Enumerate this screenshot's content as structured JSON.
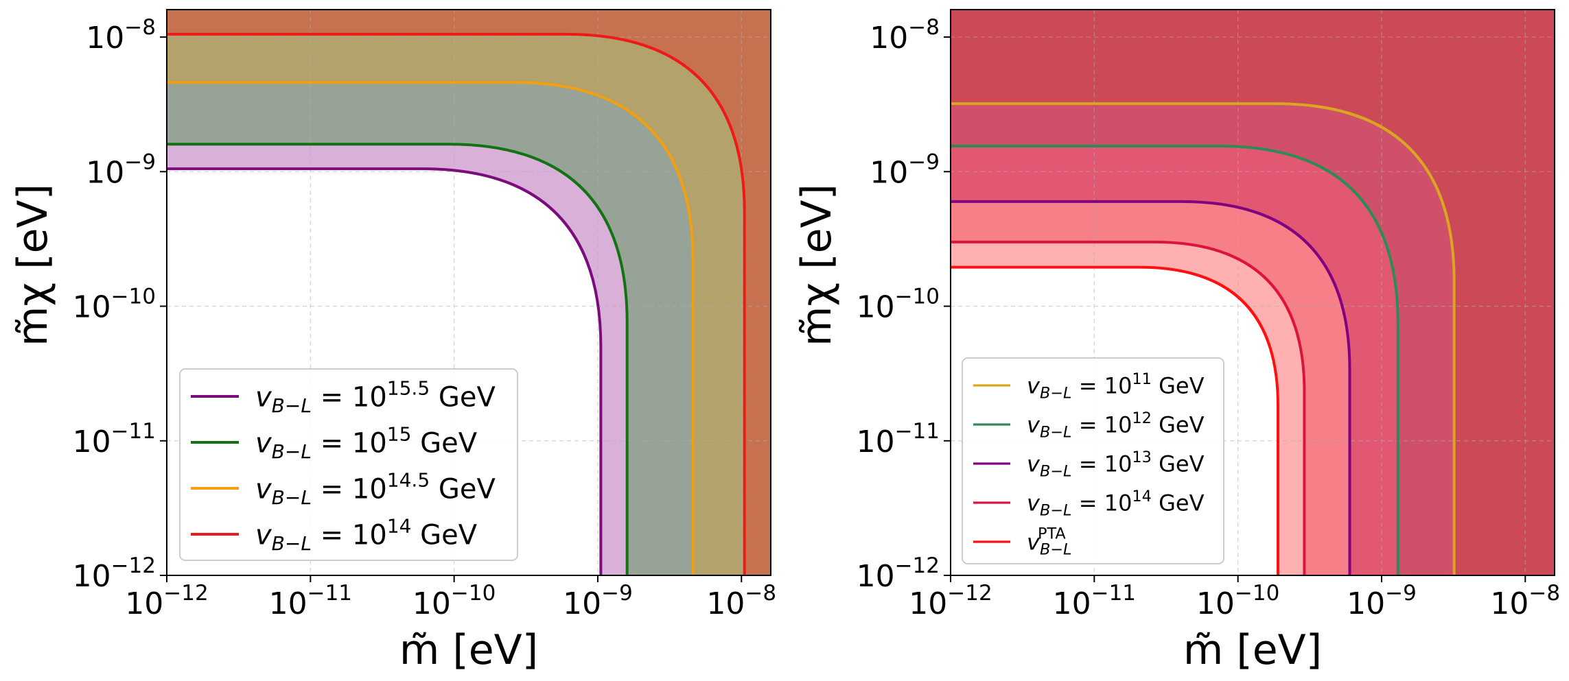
{
  "chart_data": [
    {
      "type": "area",
      "panel": "left",
      "xlabel": "m̃ [eV]",
      "ylabel": "m̃χ [eV]",
      "x_scale": "log",
      "y_scale": "log",
      "xlim": [
        1e-12,
        1.6e-08
      ],
      "ylim": [
        1e-12,
        1.6e-08
      ],
      "xtick_labels": [
        {
          "value": 1e-12,
          "base": "10",
          "exp": "−12"
        },
        {
          "value": 1e-11,
          "base": "10",
          "exp": "−11"
        },
        {
          "value": 1e-10,
          "base": "10",
          "exp": "−10"
        },
        {
          "value": 1e-09,
          "base": "10",
          "exp": "−9"
        },
        {
          "value": 1e-08,
          "base": "10",
          "exp": "−8"
        }
      ],
      "ytick_labels": [
        {
          "value": 1e-12,
          "base": "10",
          "exp": "−12"
        },
        {
          "value": 1e-11,
          "base": "10",
          "exp": "−11"
        },
        {
          "value": 1e-10,
          "base": "10",
          "exp": "−10"
        },
        {
          "value": 1e-09,
          "base": "10",
          "exp": "−9"
        },
        {
          "value": 1e-08,
          "base": "10",
          "exp": "−8"
        }
      ],
      "grid": true,
      "legend_position": "lower-left",
      "series": [
        {
          "label_main": "v",
          "label_sub": "B−L",
          "label_eq": " = 10",
          "label_exp": "15.5",
          "label_unit": " GeV",
          "threshold_x": 1.05e-09,
          "threshold_y": 1.05e-09,
          "line_color": "#7b0c7b",
          "fill_color": "#d8b0d8"
        },
        {
          "label_main": "v",
          "label_sub": "B−L",
          "label_eq": " = 10",
          "label_exp": "15",
          "label_unit": " GeV",
          "threshold_x": 1.6e-09,
          "threshold_y": 1.6e-09,
          "line_color": "#137313",
          "fill_color": "#96a396"
        },
        {
          "label_main": "v",
          "label_sub": "B−L",
          "label_eq": " = 10",
          "label_exp": "14.5",
          "label_unit": " GeV",
          "threshold_x": 4.6e-09,
          "threshold_y": 4.6e-09,
          "line_color": "#f0a010",
          "fill_color": "#b3a26b"
        },
        {
          "label_main": "v",
          "label_sub": "B−L",
          "label_eq": " = 10",
          "label_exp": "14",
          "label_unit": " GeV",
          "threshold_x": 1.05e-08,
          "threshold_y": 1.05e-08,
          "line_color": "#ee1a1a",
          "fill_color": "#c67250"
        }
      ]
    },
    {
      "type": "area",
      "panel": "right",
      "xlabel": "m̃ [eV]",
      "ylabel": "m̃χ [eV]",
      "x_scale": "log",
      "y_scale": "log",
      "xlim": [
        1e-12,
        1.6e-08
      ],
      "ylim": [
        1e-12,
        1.6e-08
      ],
      "xtick_labels": [
        {
          "value": 1e-12,
          "base": "10",
          "exp": "−12"
        },
        {
          "value": 1e-11,
          "base": "10",
          "exp": "−11"
        },
        {
          "value": 1e-10,
          "base": "10",
          "exp": "−10"
        },
        {
          "value": 1e-09,
          "base": "10",
          "exp": "−9"
        },
        {
          "value": 1e-08,
          "base": "10",
          "exp": "−8"
        }
      ],
      "ytick_labels": [
        {
          "value": 1e-12,
          "base": "10",
          "exp": "−12"
        },
        {
          "value": 1e-11,
          "base": "10",
          "exp": "−11"
        },
        {
          "value": 1e-10,
          "base": "10",
          "exp": "−10"
        },
        {
          "value": 1e-09,
          "base": "10",
          "exp": "−9"
        },
        {
          "value": 1e-08,
          "base": "10",
          "exp": "−8"
        }
      ],
      "grid": true,
      "legend_position": "lower-left",
      "series": [
        {
          "label_main": "v",
          "label_sub": "B−L",
          "label_eq": " = 10",
          "label_exp": "11",
          "label_unit": " GeV",
          "threshold_x": 3.2e-09,
          "threshold_y": 3.2e-09,
          "line_color": "#daa520",
          "fill_color": "#cc4a58"
        },
        {
          "label_main": "v",
          "label_sub": "B−L",
          "label_eq": " = 10",
          "label_exp": "12",
          "label_unit": " GeV",
          "threshold_x": 1.3e-09,
          "threshold_y": 1.55e-09,
          "line_color": "#2e8b57",
          "fill_color": "#cf5068"
        },
        {
          "label_main": "v",
          "label_sub": "B−L",
          "label_eq": " = 10",
          "label_exp": "13",
          "label_unit": " GeV",
          "threshold_x": 6e-10,
          "threshold_y": 6e-10,
          "line_color": "#800080",
          "fill_color": "#e25872"
        },
        {
          "label_main": "v",
          "label_sub": "B−L",
          "label_eq": " = 10",
          "label_exp": "14",
          "label_unit": " GeV",
          "threshold_x": 2.9e-10,
          "threshold_y": 3e-10,
          "line_color": "#dc143c",
          "fill_color": "#f77f88"
        },
        {
          "label_main": "v",
          "label_sub": "B−L",
          "label_eq": "",
          "label_exp": "",
          "label_sup": "PTA",
          "label_unit": "",
          "threshold_x": 1.9e-10,
          "threshold_y": 1.95e-10,
          "line_color": "#ff1010",
          "fill_color": "#ffb0b0"
        }
      ]
    }
  ]
}
